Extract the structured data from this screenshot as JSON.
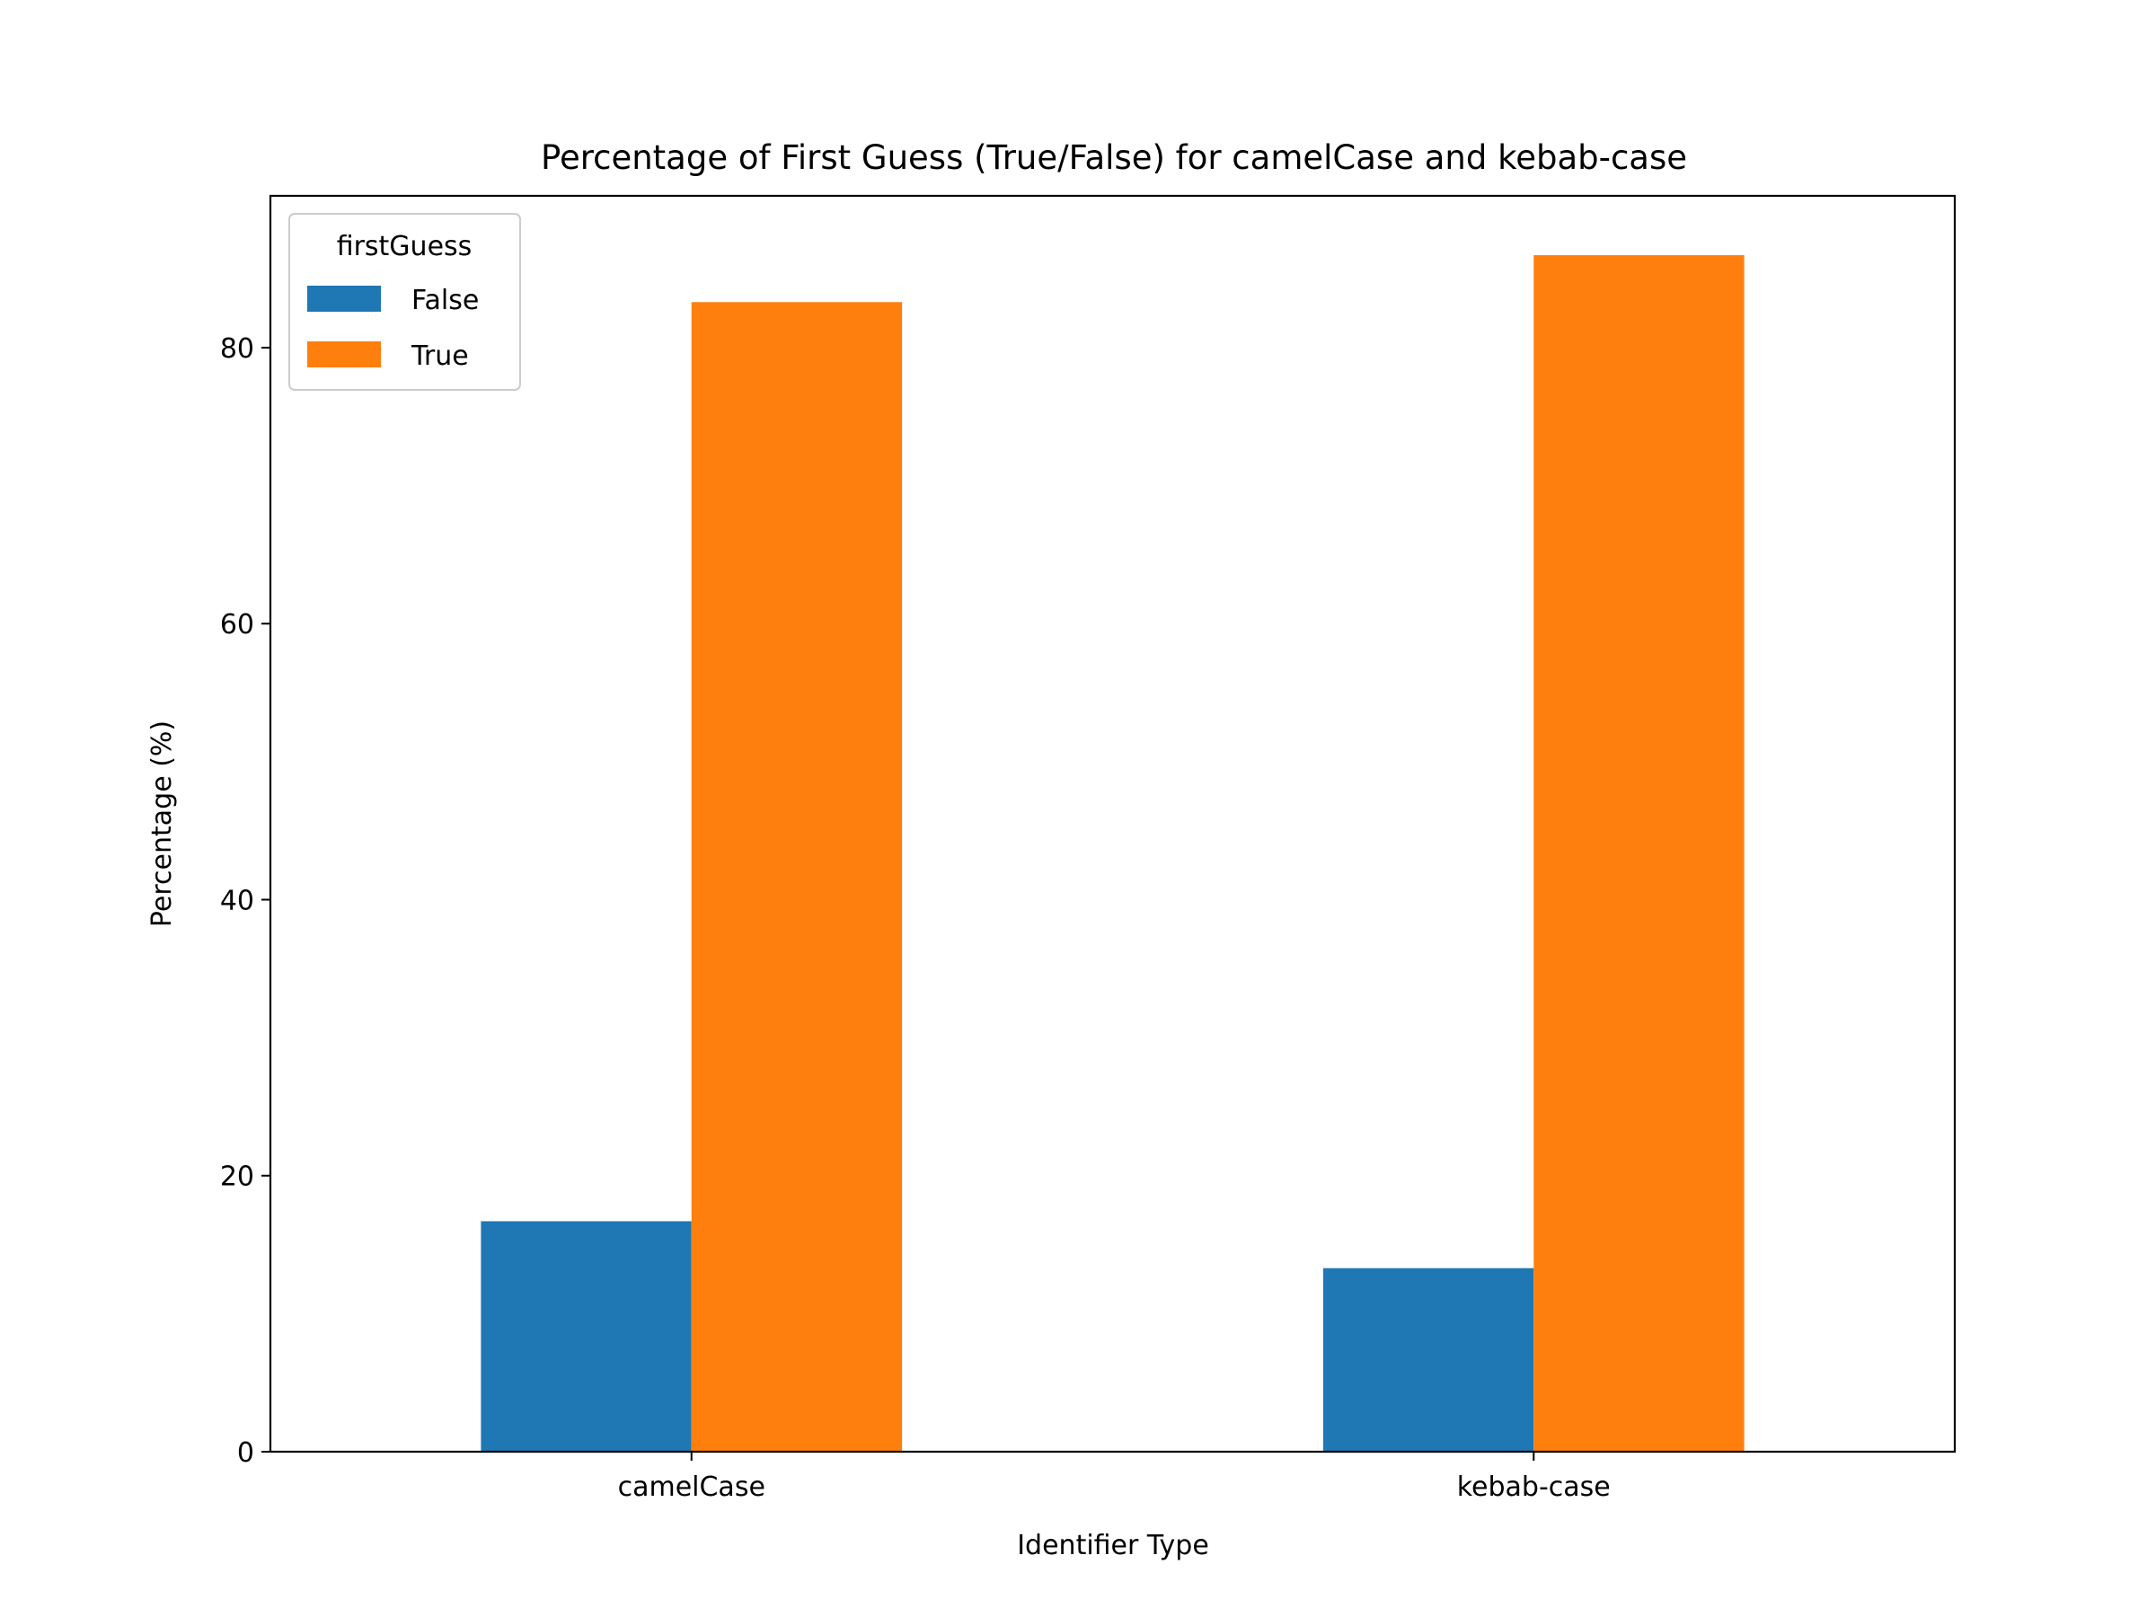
{
  "chart_data": {
    "type": "bar",
    "title": "Percentage of First Guess (True/False) for camelCase and kebab-case",
    "xlabel": "Identifier Type",
    "ylabel": "Percentage (%)",
    "categories": [
      "camelCase",
      "kebab-case"
    ],
    "series": [
      {
        "name": "False",
        "values": [
          16.7,
          13.3
        ],
        "color": "#1f77b4"
      },
      {
        "name": "True",
        "values": [
          83.3,
          86.7
        ],
        "color": "#ff7f0e"
      }
    ],
    "ylim": [
      0,
      91.0
    ],
    "yticks": [
      0,
      20,
      40,
      60,
      80
    ],
    "grid": false,
    "legend": {
      "title": "firstGuess",
      "position": "top-left"
    }
  }
}
